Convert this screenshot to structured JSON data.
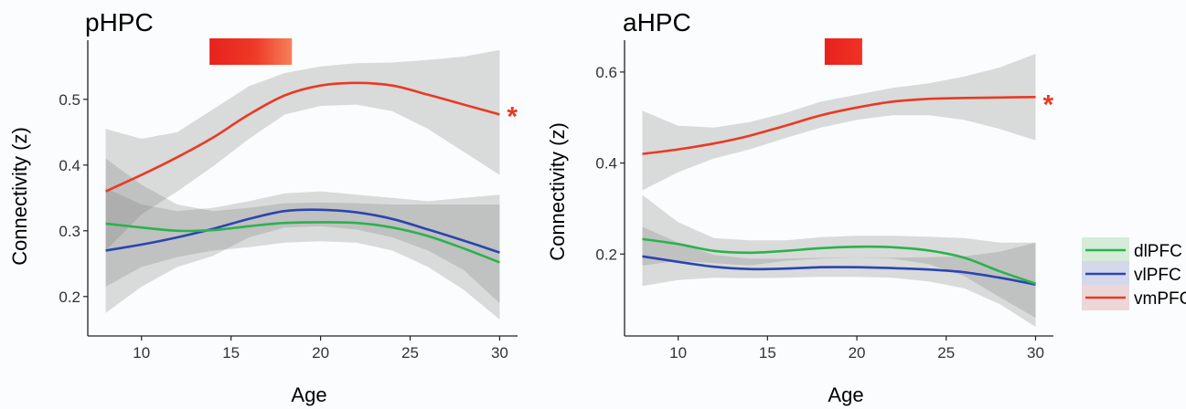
{
  "chart_data": [
    {
      "type": "line",
      "title": "pHPC",
      "xlabel": "Age",
      "ylabel": "Connectivity (z)",
      "xlim": [
        7,
        31
      ],
      "ylim": [
        0.14,
        0.59
      ],
      "xticks": [
        10,
        15,
        20,
        25,
        30
      ],
      "yticks": [
        0.2,
        0.3,
        0.4,
        0.5
      ],
      "xtick_labels": [
        "10",
        "15",
        "20",
        "25",
        "30"
      ],
      "ytick_labels": [
        "0.2",
        "0.3",
        "0.4",
        "0.5"
      ],
      "grid": false,
      "significance_bar": {
        "x_start": 13.8,
        "x_end": 18.4,
        "color": "#ee2a24"
      },
      "series": [
        {
          "name": "dlPFC",
          "color": "#2bb24c",
          "x": [
            8,
            10,
            12,
            14,
            16,
            18,
            20,
            22,
            24,
            26,
            28,
            30
          ],
          "y": [
            0.311,
            0.305,
            0.3,
            0.301,
            0.307,
            0.312,
            0.313,
            0.312,
            0.305,
            0.292,
            0.273,
            0.252
          ],
          "ci_low": [
            0.215,
            0.245,
            0.26,
            0.27,
            0.275,
            0.282,
            0.284,
            0.282,
            0.27,
            0.245,
            0.21,
            0.165
          ],
          "ci_high": [
            0.41,
            0.37,
            0.34,
            0.33,
            0.335,
            0.342,
            0.343,
            0.342,
            0.34,
            0.34,
            0.34,
            0.34
          ]
        },
        {
          "name": "vlPFC",
          "color": "#2a45b0",
          "x": [
            8,
            10,
            12,
            14,
            16,
            18,
            20,
            22,
            24,
            26,
            28,
            30
          ],
          "y": [
            0.27,
            0.279,
            0.29,
            0.303,
            0.318,
            0.33,
            0.332,
            0.328,
            0.318,
            0.302,
            0.285,
            0.267
          ],
          "ci_low": [
            0.175,
            0.215,
            0.245,
            0.262,
            0.29,
            0.305,
            0.307,
            0.302,
            0.29,
            0.27,
            0.24,
            0.19
          ],
          "ci_high": [
            0.365,
            0.34,
            0.33,
            0.335,
            0.345,
            0.357,
            0.36,
            0.355,
            0.35,
            0.345,
            0.35,
            0.355
          ]
        },
        {
          "name": "vmPFC",
          "color": "#e83a24",
          "significant": true,
          "marker": "*",
          "x": [
            8,
            10,
            12,
            14,
            16,
            18,
            20,
            22,
            24,
            26,
            28,
            30
          ],
          "y": [
            0.36,
            0.385,
            0.412,
            0.442,
            0.477,
            0.506,
            0.521,
            0.525,
            0.521,
            0.507,
            0.492,
            0.477
          ],
          "ci_low": [
            0.27,
            0.325,
            0.36,
            0.398,
            0.44,
            0.477,
            0.49,
            0.492,
            0.482,
            0.455,
            0.42,
            0.385
          ],
          "ci_high": [
            0.455,
            0.44,
            0.45,
            0.485,
            0.52,
            0.54,
            0.55,
            0.555,
            0.556,
            0.56,
            0.565,
            0.575
          ]
        }
      ]
    },
    {
      "type": "line",
      "title": "aHPC",
      "xlabel": "Age",
      "ylabel": "Connectivity (z)",
      "xlim": [
        7,
        31
      ],
      "ylim": [
        0.02,
        0.67
      ],
      "xticks": [
        10,
        15,
        20,
        25,
        30
      ],
      "yticks": [
        0.2,
        0.4,
        0.6
      ],
      "xtick_labels": [
        "10",
        "15",
        "20",
        "25",
        "30"
      ],
      "ytick_labels": [
        "0.2",
        "0.4",
        "0.6"
      ],
      "grid": false,
      "significance_bar": {
        "x_start": 18.2,
        "x_end": 20.3,
        "color": "#ee2a24"
      },
      "series": [
        {
          "name": "dlPFC",
          "color": "#2bb24c",
          "x": [
            8,
            10,
            12,
            14,
            16,
            18,
            20,
            22,
            24,
            26,
            28,
            30
          ],
          "y": [
            0.233,
            0.222,
            0.207,
            0.203,
            0.207,
            0.213,
            0.216,
            0.215,
            0.208,
            0.192,
            0.162,
            0.135
          ],
          "ci_low": [
            0.175,
            0.185,
            0.18,
            0.175,
            0.185,
            0.19,
            0.193,
            0.19,
            0.178,
            0.152,
            0.105,
            0.06
          ],
          "ci_high": [
            0.33,
            0.27,
            0.235,
            0.23,
            0.23,
            0.237,
            0.24,
            0.24,
            0.238,
            0.235,
            0.225,
            0.225
          ]
        },
        {
          "name": "vlPFC",
          "color": "#2a45b0",
          "x": [
            8,
            10,
            12,
            14,
            16,
            18,
            20,
            22,
            24,
            26,
            28,
            30
          ],
          "y": [
            0.195,
            0.183,
            0.172,
            0.167,
            0.168,
            0.171,
            0.171,
            0.169,
            0.166,
            0.16,
            0.148,
            0.133
          ],
          "ci_low": [
            0.13,
            0.143,
            0.148,
            0.147,
            0.148,
            0.15,
            0.15,
            0.148,
            0.14,
            0.125,
            0.09,
            0.04
          ],
          "ci_high": [
            0.26,
            0.225,
            0.198,
            0.19,
            0.19,
            0.192,
            0.193,
            0.192,
            0.193,
            0.195,
            0.205,
            0.225
          ]
        },
        {
          "name": "vmPFC",
          "color": "#e83a24",
          "significant": true,
          "marker": "*",
          "x": [
            8,
            10,
            12,
            14,
            16,
            18,
            20,
            22,
            24,
            26,
            28,
            30
          ],
          "y": [
            0.42,
            0.43,
            0.443,
            0.46,
            0.482,
            0.505,
            0.522,
            0.535,
            0.541,
            0.543,
            0.544,
            0.545
          ],
          "ci_low": [
            0.34,
            0.38,
            0.41,
            0.43,
            0.455,
            0.478,
            0.495,
            0.505,
            0.505,
            0.495,
            0.475,
            0.45
          ],
          "ci_high": [
            0.515,
            0.482,
            0.478,
            0.49,
            0.51,
            0.535,
            0.55,
            0.565,
            0.575,
            0.59,
            0.61,
            0.64
          ]
        }
      ]
    }
  ],
  "legend": {
    "items": [
      {
        "label": "dlPFC",
        "color": "#2bb24c"
      },
      {
        "label": "vlPFC",
        "color": "#2a45b0"
      },
      {
        "label": "vmPFC",
        "color": "#e83a24"
      }
    ]
  }
}
